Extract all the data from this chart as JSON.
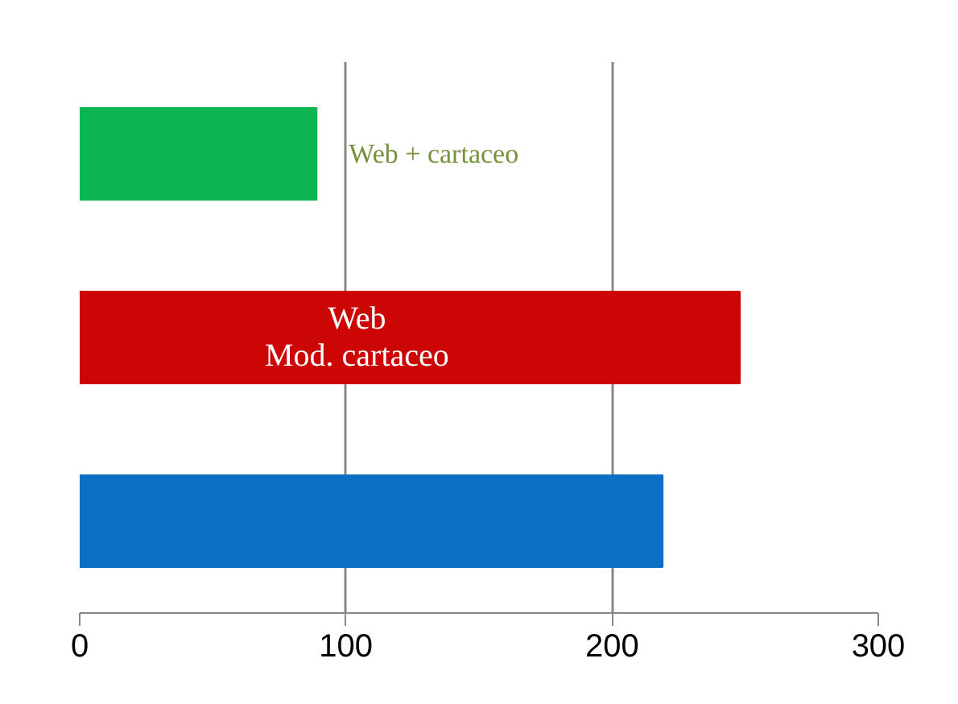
{
  "chart_data": {
    "type": "bar",
    "orientation": "horizontal",
    "categories": [
      null,
      null,
      null
    ],
    "values": [
      89,
      248,
      219
    ],
    "colors": [
      "#0cb552",
      "#cc0605",
      "#0b6fc4"
    ],
    "xlim": [
      0,
      300
    ],
    "xticks": [
      0,
      100,
      200,
      300
    ],
    "grid": "x",
    "tick_labels": "x",
    "annotations": [
      "Web + cartaceo",
      "Web\nMod. cartaceo"
    ]
  }
}
